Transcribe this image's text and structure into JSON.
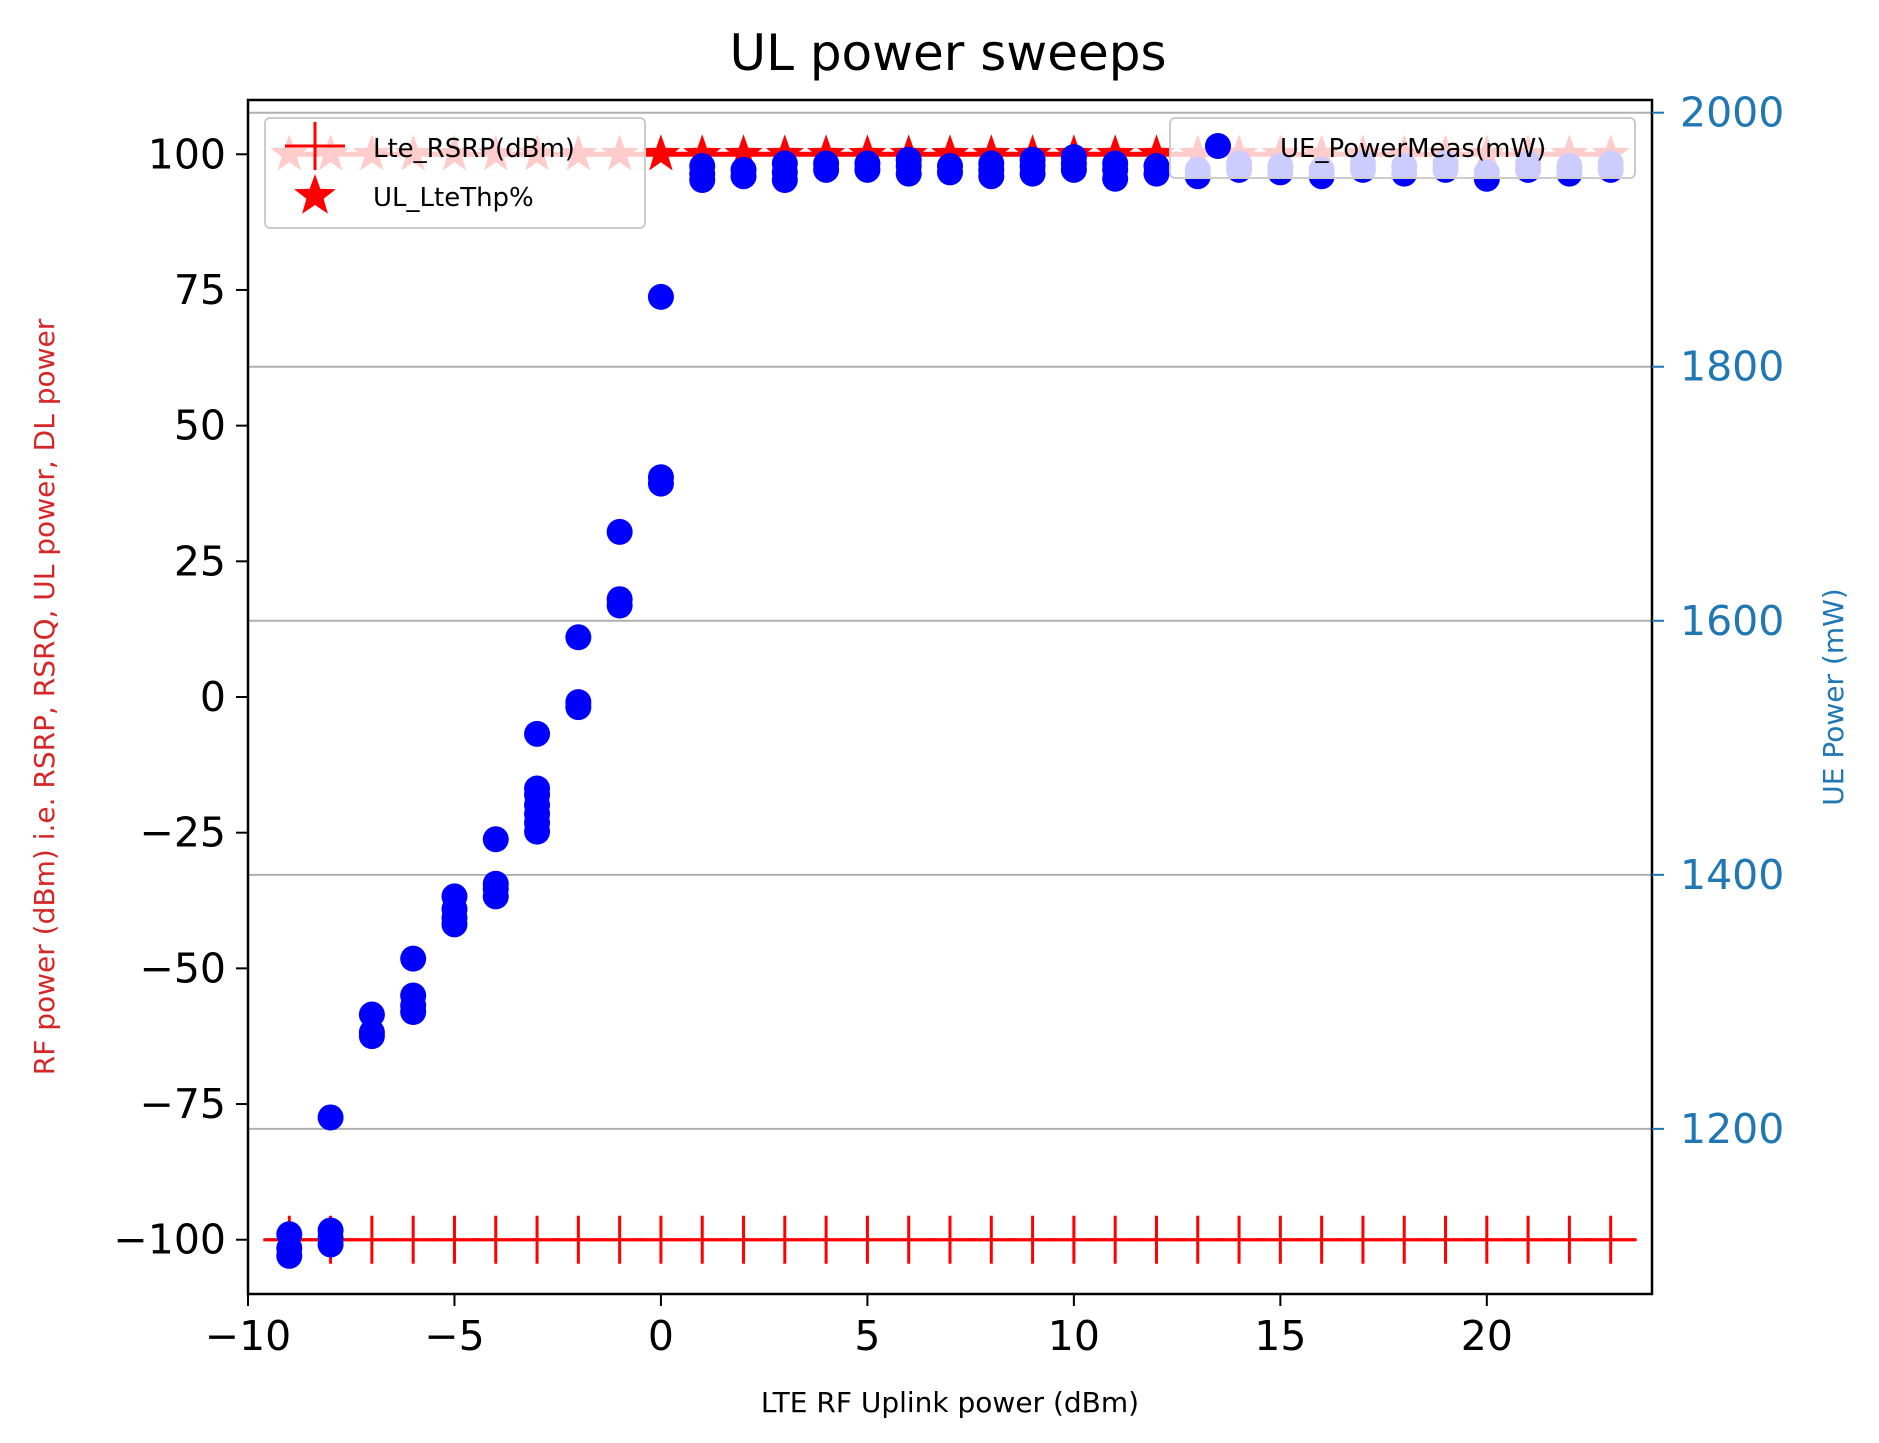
{
  "chart_data": {
    "type": "scatter",
    "title": "UL power sweeps",
    "xlabel": "LTE RF Uplink power (dBm)",
    "ylabel": "RF power (dBm) i.e. RSRP, RSRQ, UL power, DL power",
    "ylabel_right": "UE Power (mW)",
    "xlim": [
      -10,
      24
    ],
    "ylim": [
      -110,
      110
    ],
    "ylim_right": [
      1070,
      2010
    ],
    "xticks": [
      -10,
      -5,
      0,
      5,
      10,
      15,
      20
    ],
    "xtick_labels": [
      "−10",
      "−5",
      "0",
      "5",
      "10",
      "15",
      "20"
    ],
    "yticks": [
      100,
      75,
      50,
      25,
      0,
      -25,
      -50,
      -75,
      -100
    ],
    "ytick_labels": [
      "100",
      "75",
      "50",
      "25",
      "0",
      "−25",
      "−50",
      "−75",
      "−100"
    ],
    "yticks_right": [
      2000,
      1800,
      1600,
      1400,
      1200
    ],
    "ytick_labels_right": [
      "2000",
      "1800",
      "1600",
      "1400",
      "1200"
    ],
    "grid": "horizontal, right axis",
    "legend_left_position": "upper-left",
    "legend_right_position": "upper-right",
    "colors": {
      "rsrp": "#ff0000",
      "thp": "#ff0000",
      "ue_power": "#0000ff",
      "right_axis": "#1f77b4",
      "left_ylabel": "#d62728",
      "grid": "#b0b0b0"
    },
    "series": [
      {
        "name": "Lte_RSRP(dBm)",
        "axis": "left",
        "marker": "plus",
        "x": [
          -9,
          -8,
          -7,
          -6,
          -5,
          -4,
          -3,
          -2,
          -1,
          0,
          1,
          2,
          3,
          4,
          5,
          6,
          7,
          8,
          9,
          10,
          11,
          12,
          13,
          14,
          15,
          16,
          17,
          18,
          19,
          20,
          21,
          22,
          23
        ],
        "y": [
          -100,
          -100,
          -100,
          -100,
          -100,
          -100,
          -100,
          -100,
          -100,
          -100,
          -100,
          -100,
          -100,
          -100,
          -100,
          -100,
          -100,
          -100,
          -100,
          -100,
          -100,
          -100,
          -100,
          -100,
          -100,
          -100,
          -100,
          -100,
          -100,
          -100,
          -100,
          -100,
          -100
        ]
      },
      {
        "name": "UL_LteThp%",
        "axis": "left",
        "marker": "star",
        "x": [
          -9,
          -8,
          -7,
          -6,
          -5,
          -4,
          -3,
          -2,
          -1,
          0,
          1,
          2,
          3,
          4,
          5,
          6,
          7,
          8,
          9,
          10,
          11,
          12,
          13,
          14,
          15,
          16,
          17,
          18,
          19,
          20,
          21,
          22,
          23
        ],
        "y": [
          100,
          100,
          100,
          100,
          100,
          100,
          100,
          100,
          100,
          100,
          100,
          100,
          100,
          100,
          100,
          100,
          100,
          100,
          100,
          100,
          100,
          100,
          100,
          100,
          100,
          100,
          100,
          100,
          100,
          100,
          100,
          100,
          100
        ]
      },
      {
        "name": "UE_PowerMeas(mW)",
        "axis": "right",
        "marker": "circle",
        "points": [
          [
            -9,
            1100
          ],
          [
            -9,
            1106
          ],
          [
            -9,
            1117
          ],
          [
            -8,
            1109
          ],
          [
            -8,
            1114
          ],
          [
            -8,
            1120
          ],
          [
            -8,
            1209
          ],
          [
            -7,
            1273
          ],
          [
            -7,
            1276
          ],
          [
            -7,
            1290
          ],
          [
            -6,
            1292
          ],
          [
            -6,
            1297
          ],
          [
            -6,
            1305
          ],
          [
            -6,
            1334
          ],
          [
            -5,
            1361
          ],
          [
            -5,
            1366
          ],
          [
            -5,
            1373
          ],
          [
            -5,
            1383
          ],
          [
            -4,
            1383
          ],
          [
            -4,
            1389
          ],
          [
            -4,
            1393
          ],
          [
            -4,
            1428
          ],
          [
            -3,
            1434
          ],
          [
            -3,
            1441
          ],
          [
            -3,
            1448
          ],
          [
            -3,
            1455
          ],
          [
            -3,
            1463
          ],
          [
            -3,
            1468
          ],
          [
            -3,
            1511
          ],
          [
            -2,
            1532
          ],
          [
            -2,
            1536
          ],
          [
            -2,
            1587
          ],
          [
            -1,
            1612
          ],
          [
            -1,
            1617
          ],
          [
            -1,
            1670
          ],
          [
            0,
            1708
          ],
          [
            0,
            1713
          ],
          [
            0,
            1855
          ],
          [
            1,
            1947
          ],
          [
            1,
            1952
          ],
          [
            1,
            1958
          ],
          [
            2,
            1950
          ],
          [
            2,
            1955
          ],
          [
            3,
            1947
          ],
          [
            3,
            1953
          ],
          [
            3,
            1960
          ],
          [
            4,
            1955
          ],
          [
            4,
            1960
          ],
          [
            5,
            1955
          ],
          [
            5,
            1960
          ],
          [
            6,
            1952
          ],
          [
            6,
            1958
          ],
          [
            6,
            1963
          ],
          [
            7,
            1953
          ],
          [
            7,
            1958
          ],
          [
            8,
            1950
          ],
          [
            8,
            1955
          ],
          [
            8,
            1960
          ],
          [
            9,
            1952
          ],
          [
            9,
            1958
          ],
          [
            9,
            1963
          ],
          [
            10,
            1955
          ],
          [
            10,
            1960
          ],
          [
            10,
            1965
          ],
          [
            11,
            1948
          ],
          [
            11,
            1955
          ],
          [
            11,
            1960
          ],
          [
            12,
            1952
          ],
          [
            12,
            1958
          ],
          [
            13,
            1950
          ],
          [
            13,
            1955
          ],
          [
            14,
            1955
          ],
          [
            14,
            1960
          ],
          [
            15,
            1953
          ],
          [
            15,
            1958
          ],
          [
            16,
            1950
          ],
          [
            16,
            1955
          ],
          [
            17,
            1955
          ],
          [
            17,
            1960
          ],
          [
            18,
            1952
          ],
          [
            18,
            1958
          ],
          [
            19,
            1955
          ],
          [
            19,
            1960
          ],
          [
            20,
            1948
          ],
          [
            20,
            1953
          ],
          [
            21,
            1955
          ],
          [
            21,
            1960
          ],
          [
            22,
            1952
          ],
          [
            22,
            1958
          ],
          [
            23,
            1955
          ],
          [
            23,
            1960
          ]
        ]
      }
    ]
  }
}
